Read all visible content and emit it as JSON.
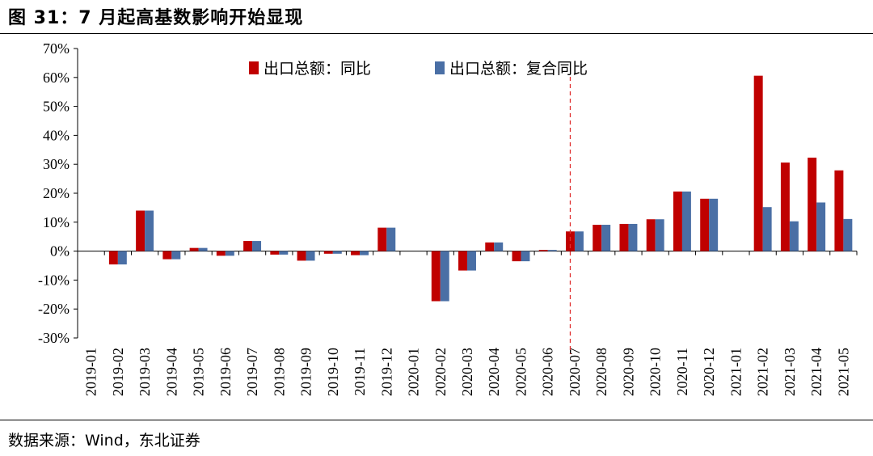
{
  "figure": {
    "title": "图  31：7 月起高基数影响开始显现",
    "source": "数据来源：Wind，东北证券"
  },
  "colors": {
    "series1": "#c00000",
    "series2": "#4a6fa5",
    "marker": "#e03030",
    "axis": "#000000"
  },
  "chart_data": {
    "type": "bar",
    "categories": [
      "2019-01",
      "2019-02",
      "2019-03",
      "2019-04",
      "2019-05",
      "2019-06",
      "2019-07",
      "2019-08",
      "2019-09",
      "2019-10",
      "2019-11",
      "2019-12",
      "2020-01",
      "2020-02",
      "2020-03",
      "2020-04",
      "2020-05",
      "2020-06",
      "2020-07",
      "2020-08",
      "2020-09",
      "2020-10",
      "2020-11",
      "2020-12",
      "2021-01",
      "2021-02",
      "2021-03",
      "2021-04",
      "2021-05"
    ],
    "series": [
      {
        "name": "出口总额：同比",
        "values": [
          null,
          -4.6,
          14.0,
          -2.8,
          1.1,
          -1.6,
          3.5,
          -1.2,
          -3.3,
          -0.9,
          -1.4,
          8.1,
          null,
          -17.3,
          -6.7,
          3.0,
          -3.5,
          0.4,
          6.8,
          9.1,
          9.4,
          11.0,
          20.6,
          18.1,
          null,
          60.6,
          30.6,
          32.3,
          27.9
        ]
      },
      {
        "name": "出口总额：复合同比",
        "values": [
          null,
          -4.6,
          14.0,
          -2.8,
          1.1,
          -1.6,
          3.5,
          -1.2,
          -3.3,
          -0.9,
          -1.4,
          8.1,
          null,
          -17.3,
          -6.7,
          3.0,
          -3.5,
          0.4,
          6.8,
          9.1,
          9.4,
          11.0,
          20.6,
          18.1,
          null,
          15.2,
          10.3,
          16.8,
          11.1
        ]
      }
    ],
    "ylim": [
      -30,
      70
    ],
    "yticks": [
      "-30%",
      "-20%",
      "-10%",
      "0%",
      "10%",
      "20%",
      "30%",
      "40%",
      "50%",
      "60%",
      "70%"
    ],
    "ytick_values": [
      -30,
      -20,
      -10,
      0,
      10,
      20,
      30,
      40,
      50,
      60,
      70
    ],
    "marker_category": "2020-07",
    "legend_position": "top",
    "grid": false
  }
}
